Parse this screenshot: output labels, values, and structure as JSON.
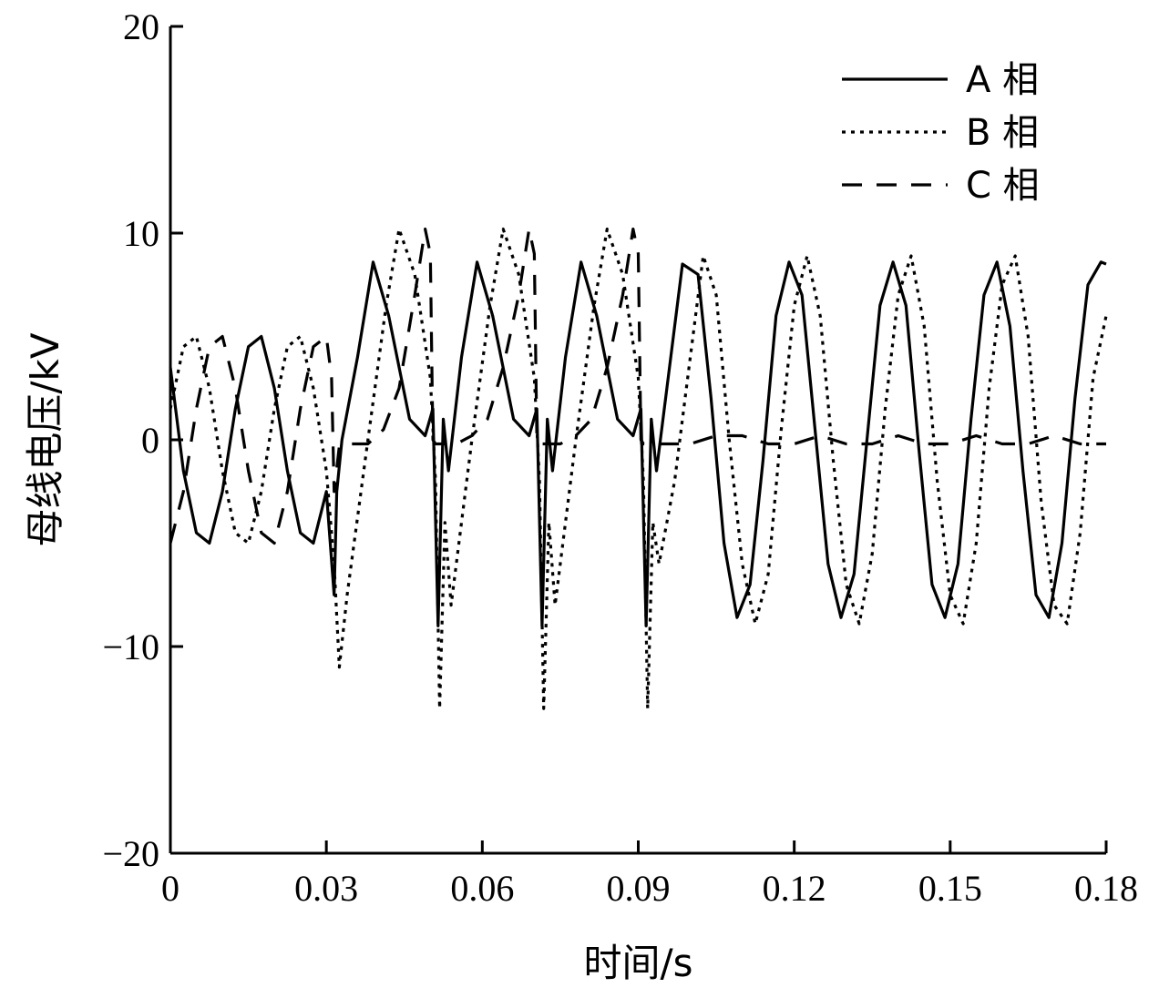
{
  "chart_data": {
    "type": "line",
    "title": "",
    "xlabel": "时间/s",
    "ylabel": "母线电压/kV",
    "xlim": [
      0,
      0.18
    ],
    "ylim": [
      -20,
      20
    ],
    "x_ticks": [
      0,
      0.03,
      0.06,
      0.09,
      0.12,
      0.15,
      0.18
    ],
    "x_tick_labels": [
      "0",
      "0.03",
      "0.06",
      "0.09",
      "0.12",
      "0.15",
      "0.18"
    ],
    "y_ticks": [
      -20,
      -10,
      0,
      10,
      20
    ],
    "y_tick_labels": [
      "−20",
      "−10",
      "0",
      "10",
      "20"
    ],
    "grid": false,
    "legend_position": "top-right",
    "series": [
      {
        "name": "A 相",
        "style": "solid",
        "x": [
          0,
          0.0025,
          0.005,
          0.0075,
          0.01,
          0.0125,
          0.015,
          0.0175,
          0.02,
          0.0225,
          0.025,
          0.0275,
          0.03,
          0.0315,
          0.032,
          0.033,
          0.036,
          0.039,
          0.042,
          0.046,
          0.049,
          0.0505,
          0.0515,
          0.0525,
          0.0535,
          0.056,
          0.059,
          0.062,
          0.066,
          0.069,
          0.0705,
          0.0715,
          0.0725,
          0.0735,
          0.076,
          0.079,
          0.082,
          0.086,
          0.089,
          0.0905,
          0.0915,
          0.0925,
          0.0935,
          0.0955,
          0.0985,
          0.1015,
          0.104,
          0.1065,
          0.109,
          0.1115,
          0.114,
          0.1165,
          0.119,
          0.1215,
          0.124,
          0.1265,
          0.129,
          0.1315,
          0.134,
          0.1365,
          0.139,
          0.1415,
          0.144,
          0.1465,
          0.149,
          0.1515,
          0.154,
          0.1565,
          0.159,
          0.1615,
          0.164,
          0.1665,
          0.169,
          0.1715,
          0.174,
          0.1765,
          0.179,
          0.18
        ],
        "y": [
          3.5,
          -1.5,
          -4.5,
          -5.0,
          -2.5,
          1.5,
          4.5,
          5.0,
          2.5,
          -1.5,
          -4.5,
          -5.0,
          -2.5,
          -7.5,
          -2.5,
          0,
          4.0,
          8.6,
          6.0,
          1.0,
          0.2,
          1.5,
          -9.0,
          1.0,
          -1.5,
          4.0,
          8.6,
          6.0,
          1.0,
          0.2,
          1.5,
          -9.0,
          1.0,
          -1.5,
          4.0,
          8.6,
          6.0,
          1.0,
          0.2,
          1.5,
          -9.0,
          1.0,
          -1.5,
          2.5,
          8.5,
          8.0,
          2.0,
          -5.0,
          -8.6,
          -7.0,
          -1.0,
          6.0,
          8.6,
          7.0,
          0.5,
          -6.0,
          -8.6,
          -6.5,
          0,
          6.5,
          8.6,
          6.5,
          -0.5,
          -7.0,
          -8.6,
          -6.0,
          1.0,
          7.0,
          8.6,
          5.5,
          -1.5,
          -7.5,
          -8.6,
          -5.0,
          2.0,
          7.5,
          8.6,
          8.5
        ]
      },
      {
        "name": "B 相",
        "style": "dotted",
        "x": [
          0,
          0.0025,
          0.005,
          0.0075,
          0.01,
          0.0125,
          0.015,
          0.0175,
          0.02,
          0.0225,
          0.025,
          0.0275,
          0.03,
          0.0315,
          0.0325,
          0.034,
          0.038,
          0.0415,
          0.044,
          0.047,
          0.05,
          0.051,
          0.0518,
          0.0528,
          0.054,
          0.058,
          0.0615,
          0.064,
          0.067,
          0.07,
          0.071,
          0.0718,
          0.0728,
          0.074,
          0.078,
          0.0815,
          0.084,
          0.087,
          0.09,
          0.091,
          0.0918,
          0.0928,
          0.094,
          0.097,
          0.1,
          0.1025,
          0.105,
          0.1075,
          0.11,
          0.1125,
          0.115,
          0.1175,
          0.12,
          0.1225,
          0.125,
          0.1275,
          0.13,
          0.1325,
          0.135,
          0.1375,
          0.14,
          0.1425,
          0.145,
          0.1475,
          0.15,
          0.1525,
          0.155,
          0.1575,
          0.16,
          0.1625,
          0.165,
          0.1675,
          0.17,
          0.1725,
          0.175,
          0.1775,
          0.18
        ],
        "y": [
          1.5,
          4.5,
          5.0,
          2.5,
          -1.5,
          -4.5,
          -5.0,
          -2.5,
          1.5,
          4.5,
          5.0,
          2.5,
          -1.5,
          -6.0,
          -11.0,
          -7.5,
          0,
          6.5,
          10.2,
          8.0,
          3.0,
          -2.0,
          -13.0,
          -4.0,
          -8.0,
          0,
          6.5,
          10.2,
          8.0,
          3.0,
          -2.0,
          -13.0,
          -4.0,
          -8.0,
          0,
          6.5,
          10.2,
          8.0,
          3.0,
          -2.0,
          -13.0,
          -4.0,
          -6.0,
          -2.0,
          4.0,
          8.9,
          7.0,
          0,
          -6.0,
          -8.9,
          -6.5,
          0.5,
          6.5,
          8.9,
          6.0,
          -1.0,
          -7.0,
          -8.9,
          -5.5,
          1.5,
          7.0,
          8.9,
          5.5,
          -2.0,
          -7.5,
          -8.9,
          -5.0,
          2.5,
          7.5,
          8.9,
          5.0,
          -3.0,
          -8.0,
          -8.9,
          -4.5,
          3.0,
          6.0
        ]
      },
      {
        "name": "C 相",
        "style": "dashed",
        "x": [
          0,
          0.0025,
          0.005,
          0.0075,
          0.01,
          0.0125,
          0.015,
          0.0175,
          0.02,
          0.0225,
          0.025,
          0.0275,
          0.03,
          0.031,
          0.0315,
          0.0325,
          0.034,
          0.038,
          0.041,
          0.044,
          0.047,
          0.049,
          0.05,
          0.0505,
          0.051,
          0.0525,
          0.055,
          0.058,
          0.061,
          0.064,
          0.067,
          0.069,
          0.07,
          0.0705,
          0.071,
          0.0725,
          0.075,
          0.078,
          0.081,
          0.084,
          0.087,
          0.089,
          0.09,
          0.0905,
          0.091,
          0.0925,
          0.095,
          0.1,
          0.105,
          0.11,
          0.115,
          0.12,
          0.125,
          0.13,
          0.135,
          0.14,
          0.145,
          0.15,
          0.155,
          0.16,
          0.165,
          0.17,
          0.175,
          0.18
        ],
        "y": [
          -5.0,
          -2.5,
          1.5,
          4.5,
          5.0,
          2.5,
          -1.5,
          -4.5,
          -5.0,
          -2.5,
          1.5,
          4.5,
          5.0,
          3.0,
          -2.5,
          -0.3,
          -0.2,
          -0.2,
          0.5,
          2.5,
          7.0,
          10.2,
          9.0,
          0,
          -0.2,
          -0.2,
          -0.2,
          0.2,
          1.0,
          3.5,
          7.0,
          10.2,
          9.0,
          0,
          -0.2,
          -0.2,
          -0.2,
          0.2,
          1.0,
          3.5,
          7.0,
          10.2,
          9.0,
          0,
          -0.2,
          -0.2,
          -0.2,
          -0.2,
          0.2,
          0.2,
          -0.2,
          -0.2,
          0.2,
          -0.2,
          -0.2,
          0.2,
          -0.2,
          -0.2,
          0.2,
          -0.2,
          -0.2,
          0.2,
          -0.2,
          -0.2
        ]
      }
    ]
  }
}
